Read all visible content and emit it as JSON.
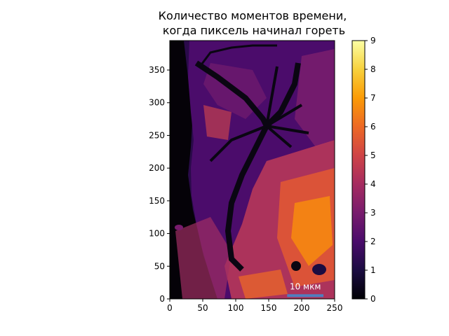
{
  "chart_data": {
    "type": "heatmap",
    "title_lines": [
      "Количество моментов времени,",
      "когда пиксель начинал гореть"
    ],
    "xlabel": "",
    "ylabel": "",
    "xlim": [
      0,
      250
    ],
    "ylim": [
      0,
      395
    ],
    "x_ticks": [
      0,
      50,
      100,
      150,
      200,
      250
    ],
    "y_ticks": [
      0,
      50,
      100,
      150,
      200,
      250,
      300,
      350
    ],
    "colorbar": {
      "colormap": "inferno",
      "vmin": 0,
      "vmax": 9,
      "ticks": [
        0,
        1,
        2,
        3,
        4,
        5,
        6,
        7,
        8,
        9
      ]
    },
    "scale_bar": {
      "label": "10 мкм",
      "x_start": 178,
      "x_end": 233,
      "y": 5,
      "color": "#4f7fbf"
    },
    "colors": {
      "inferno": [
        "#000004",
        "#1b0c41",
        "#4a0c6b",
        "#781c6d",
        "#a52c60",
        "#cf4446",
        "#ed6925",
        "#fb9b06",
        "#f7d13d",
        "#fcffa4"
      ]
    }
  }
}
